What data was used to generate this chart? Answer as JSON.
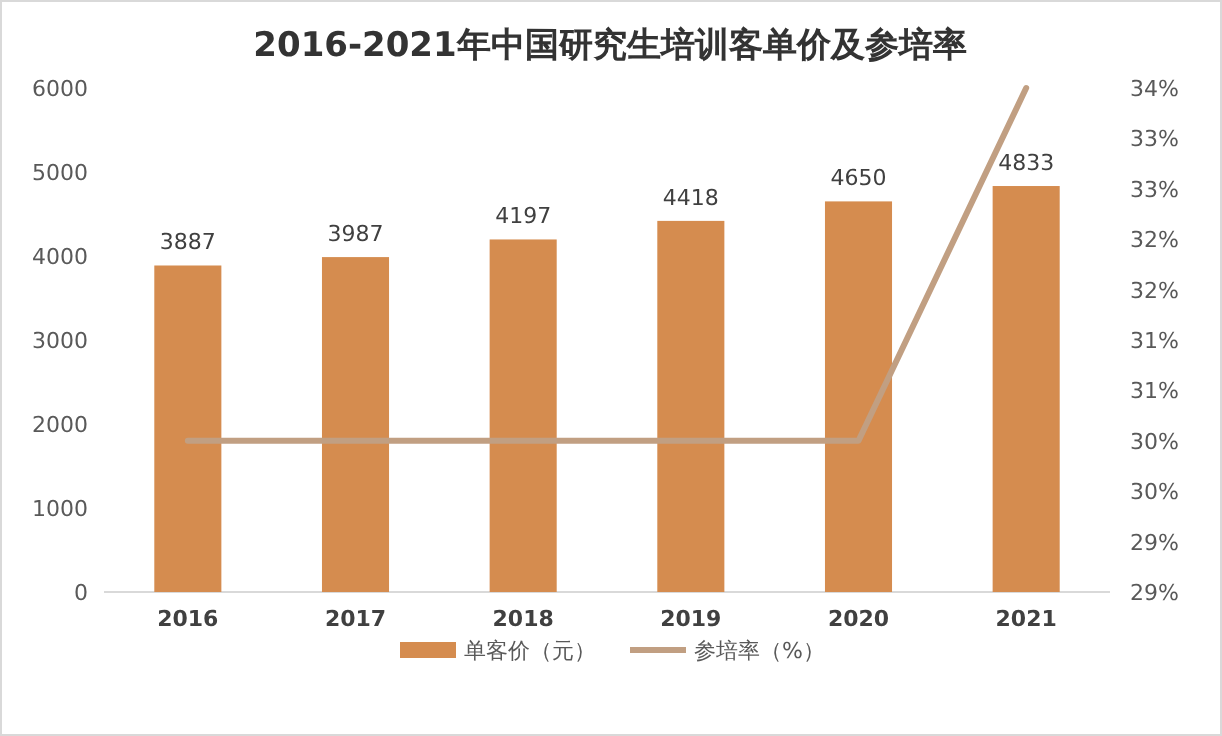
{
  "chart_data": {
    "type": "bar",
    "title": "2016-2021年中国研究生培训客单价及参培率",
    "categories": [
      "2016",
      "2017",
      "2018",
      "2019",
      "2020",
      "2021"
    ],
    "series": [
      {
        "name": "单客价（元）",
        "color": "#d58c4f",
        "values": [
          3887,
          3987,
          4197,
          4418,
          4650,
          4833
        ],
        "value_labels": [
          "3887",
          "3987",
          "4197",
          "4418",
          "4650",
          "4833"
        ]
      },
      {
        "name": "参培率（%）",
        "type": "line",
        "axis": "y2",
        "color": "#c19f82",
        "values": [
          30.5,
          30.5,
          30.5,
          30.5,
          30.5,
          34
        ]
      }
    ],
    "ylim": [
      0,
      6000
    ],
    "yticks": [
      0,
      1000,
      2000,
      3000,
      4000,
      5000,
      6000
    ],
    "y2lim": [
      29,
      34
    ],
    "y2ticks": [
      {
        "value": 29,
        "label": "29%"
      },
      {
        "value": 29.5,
        "label": "29%"
      },
      {
        "value": 30,
        "label": "30%"
      },
      {
        "value": 30.5,
        "label": "30%"
      },
      {
        "value": 31,
        "label": "31%"
      },
      {
        "value": 31.5,
        "label": "31%"
      },
      {
        "value": 32,
        "label": "32%"
      },
      {
        "value": 32.5,
        "label": "32%"
      },
      {
        "value": 33,
        "label": "33%"
      },
      {
        "value": 33.5,
        "label": "33%"
      },
      {
        "value": 34,
        "label": "34%"
      }
    ],
    "legend": "bottom",
    "grid": false
  }
}
